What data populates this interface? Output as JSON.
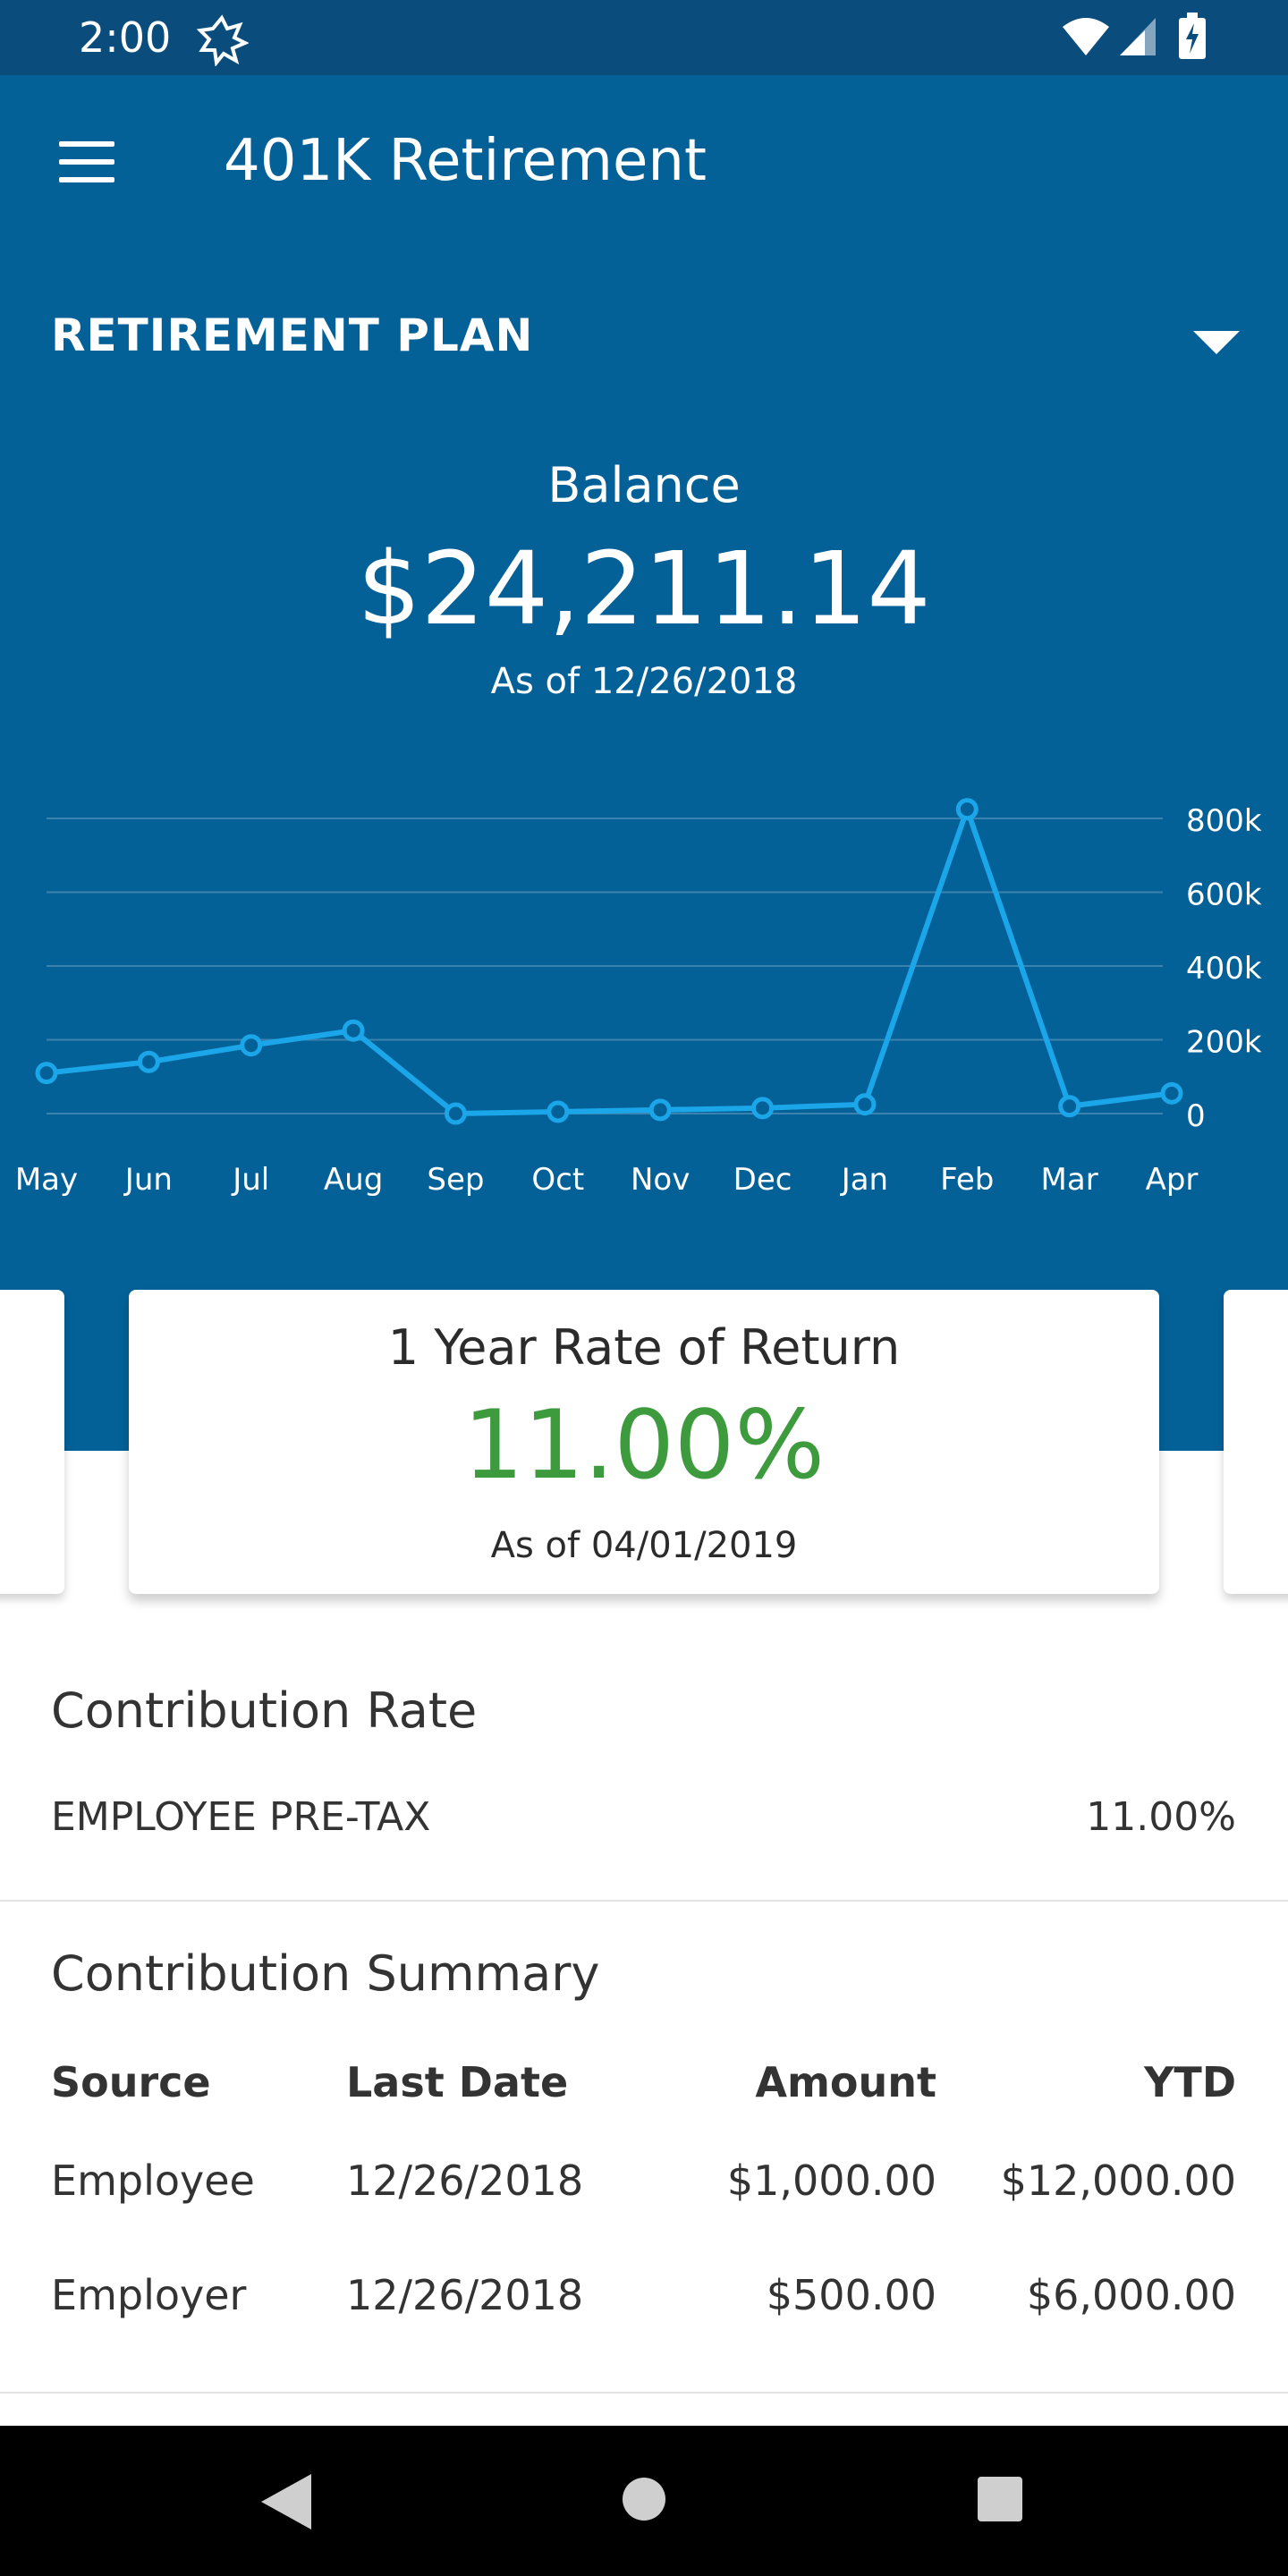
{
  "status_bar": {
    "time": "2:00",
    "icons": [
      "app-badge-icon",
      "wifi-icon",
      "signal-icon",
      "battery-charging-icon"
    ]
  },
  "header": {
    "title": "401K Retirement",
    "menu_icon": "menu-icon"
  },
  "plan": {
    "label": "RETIREMENT PLAN",
    "dropdown_icon": "chevron-down-icon"
  },
  "balance": {
    "label": "Balance",
    "value": "$24,211.14",
    "as_of": "As of 12/26/2018"
  },
  "chart_data": {
    "type": "line",
    "categories": [
      "May",
      "Jun",
      "Jul",
      "Aug",
      "Sep",
      "Oct",
      "Nov",
      "Dec",
      "Jan",
      "Feb",
      "Mar",
      "Apr"
    ],
    "series": [
      {
        "values": [
          110000,
          140000,
          185000,
          225000,
          0,
          5000,
          10000,
          15000,
          25000,
          825000,
          20000,
          55000
        ]
      }
    ],
    "y_ticks": [
      "800k",
      "600k",
      "400k",
      "200k",
      "0"
    ],
    "ylim": [
      0,
      800000
    ],
    "grid": true,
    "line_color": "#1aa6e8"
  },
  "cards": {
    "rate_of_return": {
      "title": "1 Year Rate of Return",
      "value": "11.00%",
      "as_of": "As of 04/01/2019",
      "value_color": "#3d9a3d"
    }
  },
  "contribution_rate": {
    "title": "Contribution Rate",
    "items": [
      {
        "label": "EMPLOYEE PRE-TAX",
        "value": "11.00%"
      }
    ]
  },
  "contribution_summary": {
    "title": "Contribution Summary",
    "columns": [
      "Source",
      "Last Date",
      "Amount",
      "YTD"
    ],
    "rows": [
      {
        "source": "Employee",
        "last_date": "12/26/2018",
        "amount": "$1,000.00",
        "ytd": "$12,000.00"
      },
      {
        "source": "Employer",
        "last_date": "12/26/2018",
        "amount": "$500.00",
        "ytd": "$6,000.00"
      }
    ]
  },
  "nav_bar": {
    "icons": [
      "back-icon",
      "home-icon",
      "recents-icon"
    ]
  }
}
